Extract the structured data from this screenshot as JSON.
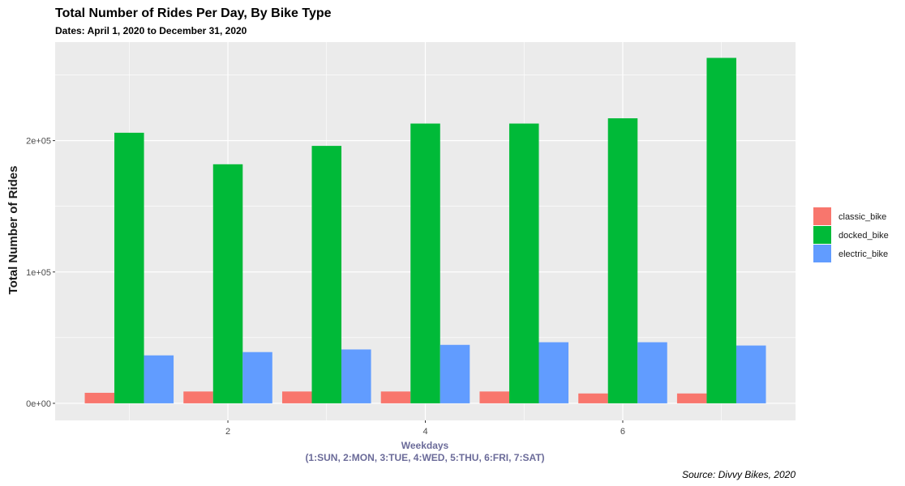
{
  "chart_data": {
    "type": "bar",
    "title": "Total Number of Rides Per Day, By Bike Type",
    "subtitle": "Dates: April 1, 2020 to December 31, 2020",
    "xlabel_line1": "Weekdays",
    "xlabel_line2": "(1:SUN, 2:MON, 3:TUE, 4:WED, 5:THU, 6:FRI, 7:SAT)",
    "ylabel": "Total Number of Rides",
    "caption": "Source: Divvy Bikes, 2020",
    "categories": [
      1,
      2,
      3,
      4,
      5,
      6,
      7
    ],
    "x_ticks": [
      {
        "value": 2,
        "label": "2"
      },
      {
        "value": 4,
        "label": "4"
      },
      {
        "value": 6,
        "label": "6"
      }
    ],
    "y_ticks": [
      {
        "value": 0,
        "label": "0e+00"
      },
      {
        "value": 100000,
        "label": "1e+05"
      },
      {
        "value": 200000,
        "label": "2e+05"
      }
    ],
    "xlim": [
      0.25,
      7.75
    ],
    "ylim": [
      -13000,
      275000
    ],
    "grid": true,
    "legend_position": "right",
    "series": [
      {
        "name": "classic_bike",
        "color": "#F8766D",
        "values": [
          8000,
          9000,
          9000,
          9000,
          9000,
          7500,
          7500
        ]
      },
      {
        "name": "docked_bike",
        "color": "#00BA38",
        "values": [
          206000,
          182000,
          196000,
          213000,
          213000,
          217000,
          263000
        ]
      },
      {
        "name": "electric_bike",
        "color": "#619CFF",
        "values": [
          36500,
          39000,
          41000,
          44500,
          46500,
          46500,
          44000
        ]
      }
    ],
    "colors": {
      "panel": "#EBEBEB",
      "grid": "#FFFFFF",
      "xlabel": "#6B6B99"
    }
  }
}
